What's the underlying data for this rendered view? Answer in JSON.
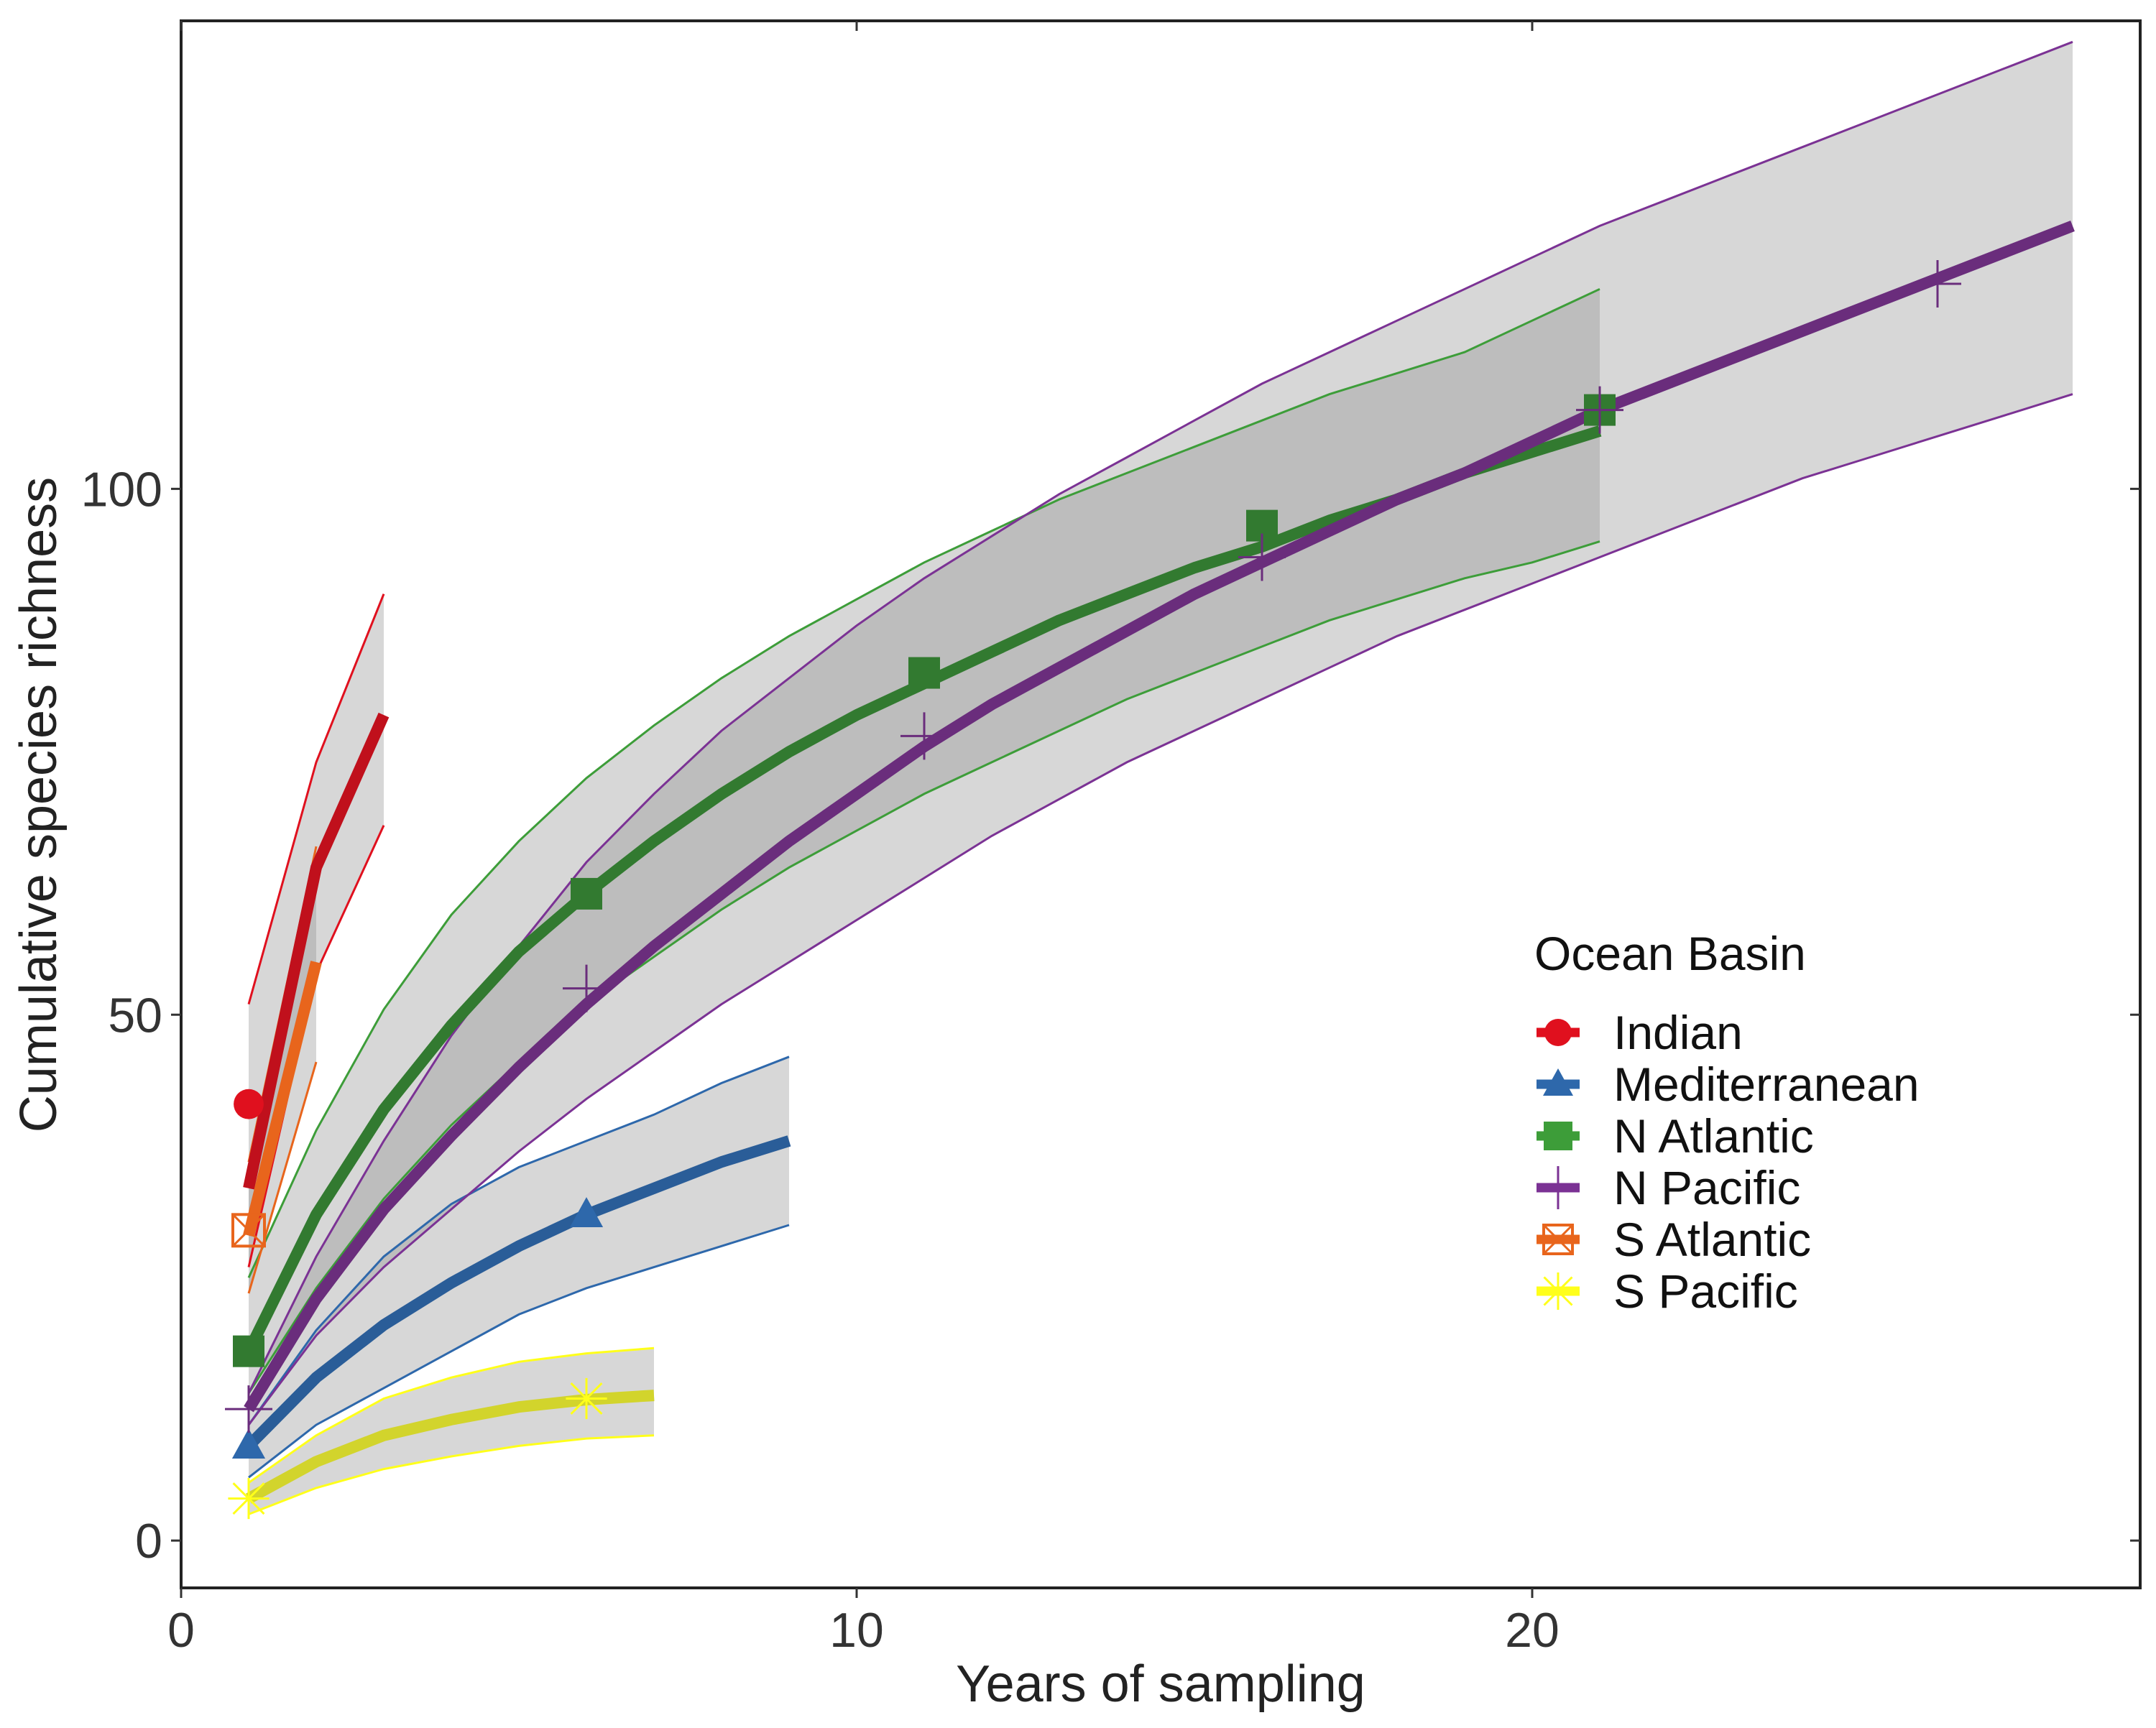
{
  "chart_data": {
    "type": "line",
    "xlabel": "Years of sampling",
    "ylabel": "Cumulative species richness",
    "xlim": [
      0,
      29
    ],
    "ylim": [
      -4.5,
      144.5
    ],
    "x_ticks": [
      0,
      10,
      20
    ],
    "y_ticks": [
      0,
      50,
      100
    ],
    "grid": false,
    "legend": {
      "title": "Ocean Basin",
      "placement": "right"
    },
    "series": [
      {
        "name": "Indian",
        "color": "#e0101e",
        "line_color": "#c0101c",
        "marker": "circle",
        "curve": {
          "x": [
            1,
            2,
            3
          ],
          "y": [
            33.5,
            64,
            78.5
          ]
        },
        "upper": {
          "x": [
            1,
            2,
            3
          ],
          "y": [
            51,
            74,
            90
          ]
        },
        "lower": {
          "x": [
            1,
            2,
            3
          ],
          "y": [
            26,
            54,
            68
          ]
        },
        "points": [
          {
            "x": 1,
            "y": 41.5
          }
        ]
      },
      {
        "name": "Mediterranean",
        "color": "#2e68ab",
        "line_color": "#2a5d98",
        "marker": "triangle",
        "curve": {
          "x": [
            1,
            2,
            3,
            4,
            5,
            6,
            7,
            8,
            9
          ],
          "y": [
            9,
            15.5,
            20.5,
            24.5,
            28,
            31,
            33.5,
            36,
            38
          ]
        },
        "upper": {
          "x": [
            1,
            2,
            3,
            4,
            5,
            6,
            7,
            8,
            9
          ],
          "y": [
            11,
            20,
            27,
            32,
            35.5,
            38,
            40.5,
            43.5,
            46
          ]
        },
        "lower": {
          "x": [
            1,
            2,
            3,
            4,
            5,
            6,
            7,
            8,
            9
          ],
          "y": [
            6,
            11,
            14.5,
            18,
            21.5,
            24,
            26,
            28,
            30
          ]
        },
        "points": [
          {
            "x": 1,
            "y": 9
          },
          {
            "x": 6,
            "y": 31
          }
        ]
      },
      {
        "name": "N Atlantic",
        "color": "#3d9d39",
        "line_color": "#327a30",
        "marker": "square",
        "curve": {
          "x": [
            1,
            2,
            3,
            4,
            5,
            6,
            7,
            8,
            9,
            10,
            11,
            12,
            13,
            14,
            15,
            16,
            17,
            18,
            19,
            20,
            21
          ],
          "y": [
            18,
            31,
            41,
            49,
            56,
            61.5,
            66.5,
            71,
            75,
            78.5,
            81.5,
            84.5,
            87.5,
            90,
            92.5,
            94.5,
            97,
            99,
            101.5,
            103.5,
            105.5
          ]
        },
        "upper": {
          "x": [
            1,
            2,
            3,
            4,
            5,
            6,
            7,
            8,
            9,
            10,
            11,
            12,
            13,
            14,
            15,
            16,
            17,
            18,
            19,
            20,
            21
          ],
          "y": [
            25,
            39,
            50.5,
            59.5,
            66.5,
            72.5,
            77.5,
            82,
            86,
            89.5,
            93,
            96,
            99,
            101.5,
            104,
            106.5,
            109,
            111,
            113,
            116,
            119
          ]
        },
        "lower": {
          "x": [
            1,
            2,
            3,
            4,
            5,
            6,
            7,
            8,
            9,
            10,
            11,
            12,
            13,
            14,
            15,
            16,
            17,
            18,
            19,
            20,
            21
          ],
          "y": [
            14,
            24,
            32.5,
            39.5,
            45.5,
            51,
            55.5,
            60,
            64,
            67.5,
            71,
            74,
            77,
            80,
            82.5,
            85,
            87.5,
            89.5,
            91.5,
            93,
            95
          ]
        },
        "points": [
          {
            "x": 1,
            "y": 18
          },
          {
            "x": 6,
            "y": 61.5
          },
          {
            "x": 11,
            "y": 82.5
          },
          {
            "x": 16,
            "y": 96.5
          },
          {
            "x": 21,
            "y": 107.5
          }
        ]
      },
      {
        "name": "N Pacific",
        "color": "#7b3294",
        "line_color": "#6a2d7c",
        "marker": "plus",
        "curve": {
          "x": [
            1,
            2,
            3,
            4,
            5,
            6,
            7,
            8,
            9,
            10,
            11,
            12,
            13,
            14,
            15,
            16,
            17,
            18,
            19,
            20,
            21,
            22,
            23,
            24,
            25,
            26,
            27,
            28
          ],
          "y": [
            12.5,
            23,
            31.5,
            38.5,
            45,
            51,
            56.5,
            61.5,
            66.5,
            71,
            75.5,
            79.5,
            83,
            86.5,
            90,
            93,
            96,
            99,
            101.5,
            104.5,
            107.5,
            110,
            112.5,
            115,
            117.5,
            120,
            122.5,
            125
          ]
        },
        "upper": {
          "x": [
            1,
            2,
            3,
            4,
            5,
            6,
            7,
            8,
            9,
            10,
            11,
            12,
            13,
            14,
            15,
            16,
            17,
            18,
            19,
            20,
            21,
            22,
            23,
            24,
            25,
            26,
            27,
            28
          ],
          "y": [
            14,
            27,
            38,
            48,
            56.5,
            64.5,
            71,
            77,
            82,
            87,
            91.5,
            95.5,
            99.5,
            103,
            106.5,
            110,
            113,
            116,
            119,
            122,
            125,
            127.5,
            130,
            132.5,
            135,
            137.5,
            140,
            142.5
          ]
        },
        "lower": {
          "x": [
            1,
            2,
            3,
            4,
            5,
            6,
            7,
            8,
            9,
            10,
            11,
            12,
            13,
            14,
            15,
            16,
            17,
            18,
            19,
            20,
            21,
            22,
            23,
            24,
            25,
            26,
            27,
            28
          ],
          "y": [
            11,
            19.5,
            26,
            31.5,
            37,
            42,
            46.5,
            51,
            55,
            59,
            63,
            67,
            70.5,
            74,
            77,
            80,
            83,
            86,
            88.5,
            91,
            93.5,
            96,
            98.5,
            101,
            103,
            105,
            107,
            109
          ]
        },
        "points": [
          {
            "x": 1,
            "y": 12.5
          },
          {
            "x": 6,
            "y": 52.5
          },
          {
            "x": 11,
            "y": 76.5
          },
          {
            "x": 16,
            "y": 93.5
          },
          {
            "x": 21,
            "y": 107.5
          },
          {
            "x": 26,
            "y": 119.5
          }
        ]
      },
      {
        "name": "S Atlantic",
        "color": "#e8651c",
        "line_color": "#e8651c",
        "marker": "square-cross",
        "curve": {
          "x": [
            1,
            2
          ],
          "y": [
            29,
            55
          ]
        },
        "upper": {
          "x": [
            1,
            2
          ],
          "y": [
            36,
            66
          ]
        },
        "lower": {
          "x": [
            1,
            2
          ],
          "y": [
            23.5,
            45.5
          ]
        },
        "points": [
          {
            "x": 1,
            "y": 29.5
          }
        ]
      },
      {
        "name": "S Pacific",
        "color": "#ffff1a",
        "line_color": "#d2d42c",
        "marker": "asterisk",
        "curve": {
          "x": [
            1,
            2,
            3,
            4,
            5,
            6,
            7
          ],
          "y": [
            4,
            7.5,
            10,
            11.5,
            12.7,
            13.4,
            13.8
          ]
        },
        "upper": {
          "x": [
            1,
            2,
            3,
            4,
            5,
            6,
            7
          ],
          "y": [
            5.5,
            10,
            13.5,
            15.5,
            17,
            17.8,
            18.3
          ]
        },
        "lower": {
          "x": [
            1,
            2,
            3,
            4,
            5,
            6,
            7
          ],
          "y": [
            2.5,
            5,
            6.8,
            8,
            9,
            9.7,
            10
          ]
        },
        "points": [
          {
            "x": 1,
            "y": 4
          },
          {
            "x": 6,
            "y": 13.5
          }
        ]
      }
    ]
  }
}
